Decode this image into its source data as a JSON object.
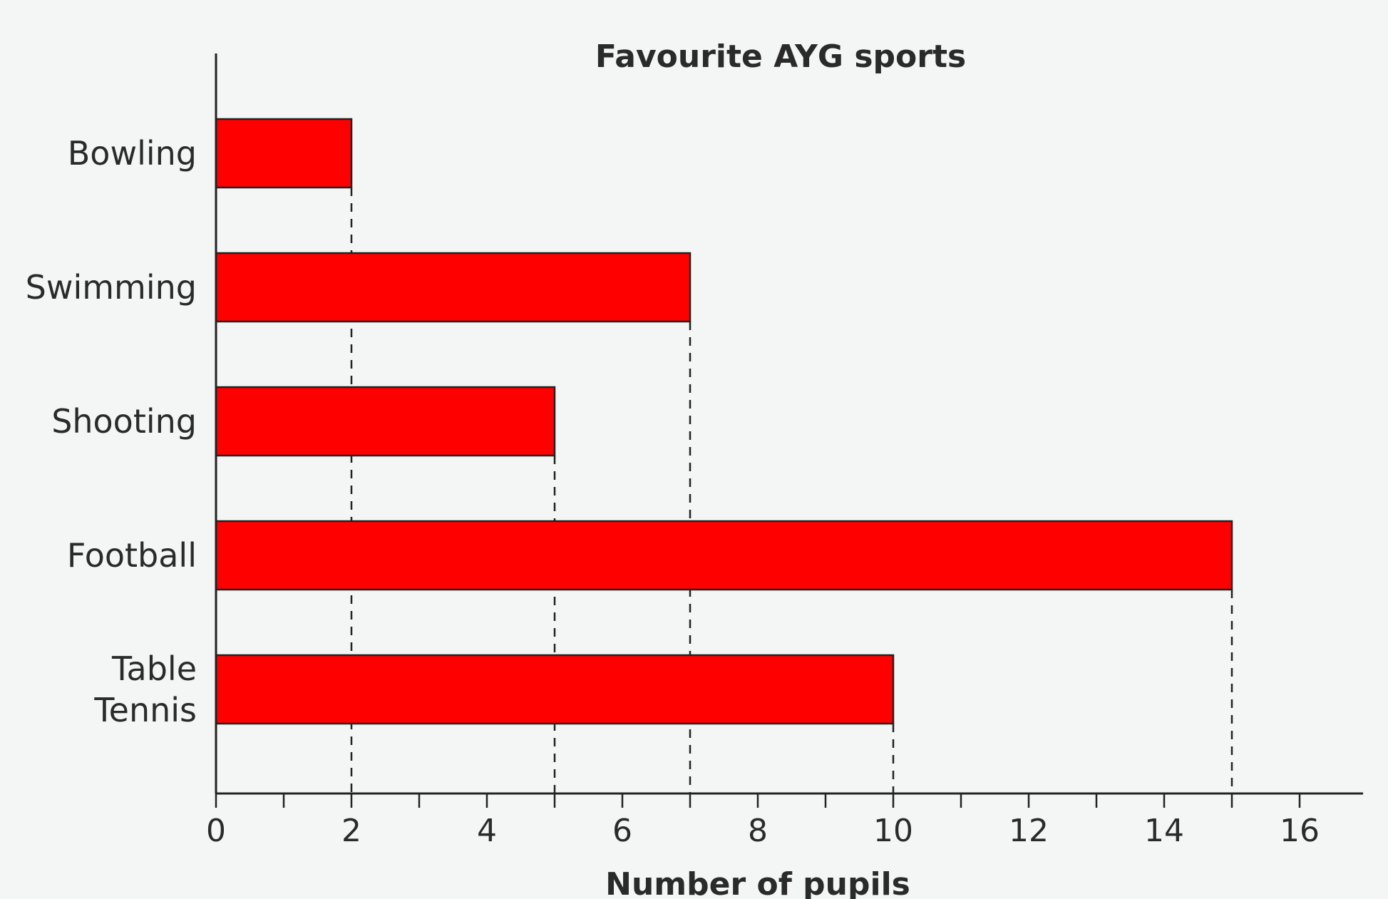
{
  "chart_data": {
    "type": "bar",
    "orientation": "horizontal",
    "title": "Favourite AYG sports",
    "xlabel": "Number of pupils",
    "ylabel": "",
    "categories": [
      [
        "Bowling"
      ],
      [
        "Swimming"
      ],
      [
        "Shooting"
      ],
      [
        "Football"
      ],
      [
        "Table",
        "Tennis"
      ]
    ],
    "values": [
      2,
      7,
      5,
      15,
      10
    ],
    "xlim": [
      0,
      16
    ],
    "x_major_ticks": [
      0,
      2,
      4,
      6,
      8,
      10,
      12,
      14,
      16
    ],
    "x_minor_step": 1,
    "dashed_guides": true,
    "grid": false,
    "bar_color": "#ff0000",
    "bar_edge_color": "#222222"
  }
}
